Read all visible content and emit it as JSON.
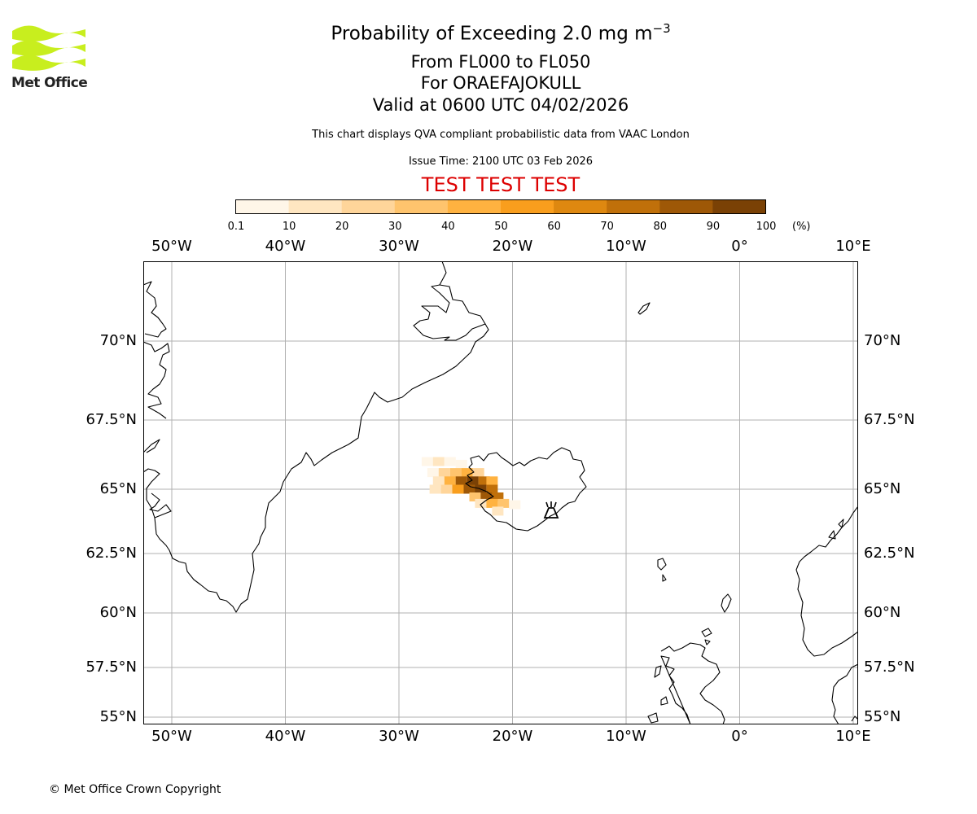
{
  "logo": {
    "text": "Met Office",
    "colors": {
      "waves": "#c8ee1e",
      "text": "#222222"
    }
  },
  "header": {
    "title_prefix": "Probability of Exceeding 2.0 mg m",
    "title_exp": "−3",
    "levels": "From FL000 to FL050",
    "volcano": "For ORAEFAJOKULL",
    "valid": "Valid at 0600 UTC 04/02/2026",
    "compliance": "This chart displays QVA compliant probabilistic data from VAAC London",
    "issue_time": "Issue Time: 2100 UTC 03 Feb 2026",
    "test_banner": "TEST TEST TEST",
    "test_color": "#dd0000"
  },
  "colorbar": {
    "tick_labels": [
      "0.1",
      "10",
      "20",
      "30",
      "40",
      "50",
      "60",
      "70",
      "80",
      "90",
      "100"
    ],
    "unit": "(%)",
    "colors": [
      "#fff6e8",
      "#ffe6c1",
      "#ffd59a",
      "#ffc46d",
      "#ffb240",
      "#f99e1d",
      "#de8810",
      "#c0700a",
      "#9e5807",
      "#7a4105"
    ]
  },
  "map": {
    "lon_labels": [
      "50°W",
      "40°W",
      "30°W",
      "20°W",
      "10°W",
      "0°",
      "10°E"
    ],
    "lat_labels": [
      "70°N",
      "67.5°N",
      "65°N",
      "62.5°N",
      "60°N",
      "57.5°N",
      "55°N"
    ],
    "volcano_symbol": "volcano",
    "grid_color": "#b0b0b0",
    "coast_color": "#000000"
  },
  "chart_data": {
    "type": "heatmap",
    "title": "Probability of Exceeding 2.0 mg m−3",
    "variable": "probability of exceeding 2.0 mg m-3 ash concentration",
    "unit": "%",
    "level_range": "FL000 to FL050",
    "volcano": "ORAEFAJOKULL",
    "xlim": [
      -52.5,
      10.5
    ],
    "ylim": [
      55,
      72
    ],
    "color_levels": [
      0.1,
      10,
      20,
      30,
      40,
      50,
      60,
      70,
      80,
      90,
      100
    ],
    "cells": [
      {
        "lon": -27.5,
        "lat": 66.0,
        "p": 5
      },
      {
        "lon": -26.5,
        "lat": 66.0,
        "p": 15
      },
      {
        "lon": -25.5,
        "lat": 66.0,
        "p": 8
      },
      {
        "lon": -24.5,
        "lat": 65.9,
        "p": 5
      },
      {
        "lon": -27.0,
        "lat": 65.6,
        "p": 8
      },
      {
        "lon": -26.0,
        "lat": 65.6,
        "p": 25
      },
      {
        "lon": -25.0,
        "lat": 65.6,
        "p": 35
      },
      {
        "lon": -24.0,
        "lat": 65.6,
        "p": 45
      },
      {
        "lon": -23.0,
        "lat": 65.6,
        "p": 20
      },
      {
        "lon": -26.5,
        "lat": 65.3,
        "p": 12
      },
      {
        "lon": -25.5,
        "lat": 65.3,
        "p": 45
      },
      {
        "lon": -24.5,
        "lat": 65.3,
        "p": 80
      },
      {
        "lon": -23.5,
        "lat": 65.3,
        "p": 92
      },
      {
        "lon": -22.5,
        "lat": 65.3,
        "p": 75
      },
      {
        "lon": -21.8,
        "lat": 65.3,
        "p": 40
      },
      {
        "lon": -26.8,
        "lat": 65.0,
        "p": 10
      },
      {
        "lon": -25.8,
        "lat": 65.0,
        "p": 25
      },
      {
        "lon": -24.8,
        "lat": 65.0,
        "p": 55
      },
      {
        "lon": -23.8,
        "lat": 65.0,
        "p": 85
      },
      {
        "lon": -22.8,
        "lat": 65.0,
        "p": 95
      },
      {
        "lon": -21.8,
        "lat": 65.0,
        "p": 72
      },
      {
        "lon": -23.3,
        "lat": 64.7,
        "p": 35
      },
      {
        "lon": -22.3,
        "lat": 64.7,
        "p": 85
      },
      {
        "lon": -21.3,
        "lat": 64.7,
        "p": 70
      },
      {
        "lon": -22.8,
        "lat": 64.45,
        "p": 15
      },
      {
        "lon": -21.8,
        "lat": 64.45,
        "p": 45
      },
      {
        "lon": -20.8,
        "lat": 64.45,
        "p": 30
      },
      {
        "lon": -19.8,
        "lat": 64.4,
        "p": 8
      },
      {
        "lon": -21.3,
        "lat": 64.15,
        "p": 10
      }
    ]
  },
  "footer": {
    "copyright": "© Met Office Crown Copyright"
  }
}
